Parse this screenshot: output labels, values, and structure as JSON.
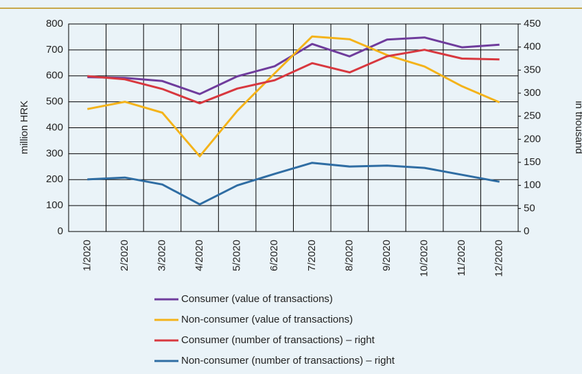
{
  "chart_data": {
    "type": "line",
    "categories": [
      "1/2020",
      "2/2020",
      "3/2020",
      "4/2020",
      "5/2020",
      "6/2020",
      "7/2020",
      "8/2020",
      "9/2020",
      "10/2020",
      "11/2020",
      "12/2020"
    ],
    "ylabel": "million HRK",
    "y2label": "in thousand",
    "ylim": [
      0,
      800
    ],
    "yticks": [
      0,
      100,
      200,
      300,
      400,
      500,
      600,
      700,
      800
    ],
    "y2lim": [
      0,
      450
    ],
    "y2ticks": [
      0,
      50,
      100,
      150,
      200,
      250,
      300,
      350,
      400,
      450
    ],
    "grid": true,
    "legend": "bottom",
    "series": [
      {
        "name": "Consumer (value of transactions)",
        "color": "#6f3c9c",
        "values": [
          595,
          592,
          580,
          530,
          598,
          637,
          723,
          675,
          740,
          748,
          710,
          720
        ]
      },
      {
        "name": "Non-consumer (value of transactions)",
        "color": "#f4b31a",
        "values": [
          472,
          500,
          458,
          290,
          465,
          610,
          752,
          741,
          680,
          636,
          560,
          498
        ]
      },
      {
        "name": "Consumer (number of transactions) – right",
        "color": "#d8383f",
        "axis": "y2",
        "values": [
          337,
          330,
          309,
          278,
          310,
          328,
          365,
          345,
          380,
          394,
          375,
          373
        ]
      },
      {
        "name": "Non-consumer (number of transactions) – right",
        "color": "#2f6da3",
        "axis": "y2",
        "values": [
          113,
          117,
          102,
          59,
          100,
          125,
          149,
          141,
          143,
          138,
          123,
          108
        ]
      }
    ]
  }
}
